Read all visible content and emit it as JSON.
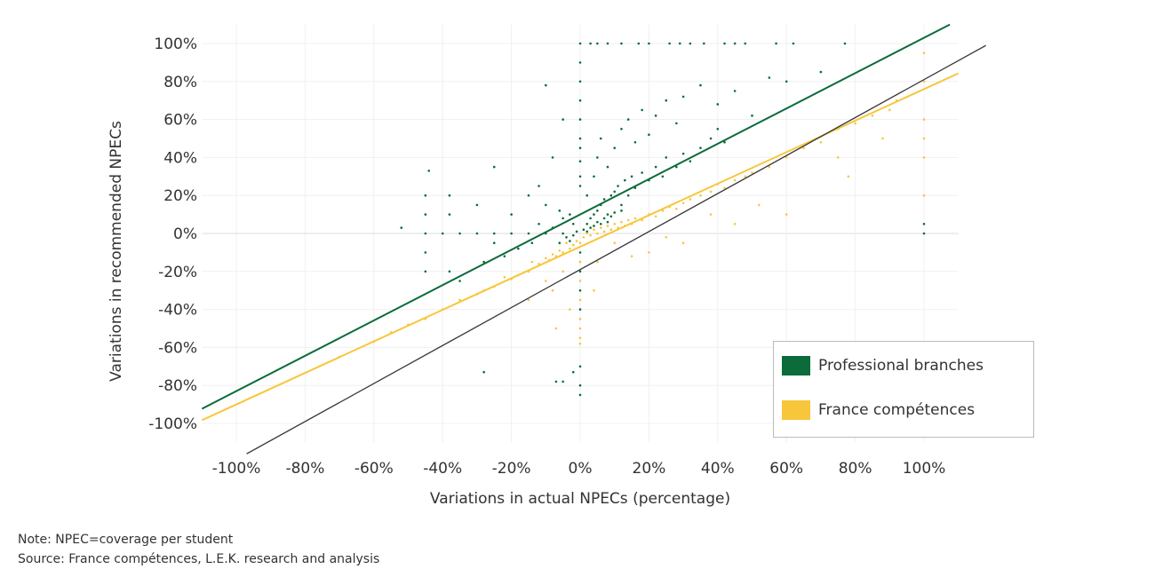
{
  "chart_data": {
    "type": "scatter",
    "xlabel": "Variations in actual NPECs (percentage)",
    "ylabel": "Variations in recommended NPECs",
    "xlim": [
      -110,
      110
    ],
    "ylim": [
      -110,
      110
    ],
    "x_ticks": [
      "-100%",
      "-80%",
      "-60%",
      "-40%",
      "-20%",
      "0%",
      "20%",
      "40%",
      "60%",
      "80%",
      "100%"
    ],
    "y_ticks": [
      "100%",
      "80%",
      "60%",
      "40%",
      "20%",
      "0%",
      "-20%",
      "-40%",
      "-60%",
      "-80%",
      "-100%"
    ],
    "grid": true,
    "legend_placement": "bottom-right",
    "series": [
      {
        "name": "Professional branches",
        "color": "#0b6b3a",
        "trendline": {
          "slope": 0.93,
          "intercept": 10
        },
        "points": [
          [
            0,
            100
          ],
          [
            3,
            100
          ],
          [
            5,
            100
          ],
          [
            8,
            100
          ],
          [
            12,
            100
          ],
          [
            17,
            100
          ],
          [
            20,
            100
          ],
          [
            26,
            100
          ],
          [
            29,
            100
          ],
          [
            32,
            100
          ],
          [
            36,
            100
          ],
          [
            42,
            100
          ],
          [
            45,
            100
          ],
          [
            48,
            100
          ],
          [
            57,
            100
          ],
          [
            62,
            100
          ],
          [
            77,
            100
          ],
          [
            0,
            90
          ],
          [
            0,
            80
          ],
          [
            0,
            70
          ],
          [
            0,
            60
          ],
          [
            0,
            50
          ],
          [
            0,
            45
          ],
          [
            0,
            38
          ],
          [
            0,
            30
          ],
          [
            0,
            25
          ],
          [
            0,
            -10
          ],
          [
            0,
            -20
          ],
          [
            0,
            -30
          ],
          [
            0,
            -40
          ],
          [
            0,
            -70
          ],
          [
            0,
            -80
          ],
          [
            0,
            -85
          ],
          [
            -45,
            0
          ],
          [
            -40,
            0
          ],
          [
            -35,
            0
          ],
          [
            -30,
            0
          ],
          [
            -25,
            0
          ],
          [
            -20,
            0
          ],
          [
            -15,
            0
          ],
          [
            -10,
            0
          ],
          [
            -5,
            0
          ],
          [
            -45,
            10
          ],
          [
            -45,
            -10
          ],
          [
            -45,
            20
          ],
          [
            -45,
            -20
          ],
          [
            -38,
            20
          ],
          [
            -38,
            -20
          ],
          [
            -38,
            10
          ],
          [
            -52,
            3
          ],
          [
            2,
            5
          ],
          [
            3,
            8
          ],
          [
            4,
            10
          ],
          [
            5,
            12
          ],
          [
            6,
            15
          ],
          [
            7,
            18
          ],
          [
            8,
            10
          ],
          [
            9,
            20
          ],
          [
            10,
            22
          ],
          [
            11,
            25
          ],
          [
            12,
            15
          ],
          [
            13,
            28
          ],
          [
            14,
            20
          ],
          [
            15,
            30
          ],
          [
            16,
            24
          ],
          [
            18,
            32
          ],
          [
            20,
            28
          ],
          [
            22,
            35
          ],
          [
            24,
            30
          ],
          [
            25,
            40
          ],
          [
            28,
            35
          ],
          [
            30,
            42
          ],
          [
            32,
            38
          ],
          [
            35,
            45
          ],
          [
            38,
            50
          ],
          [
            40,
            55
          ],
          [
            42,
            48
          ],
          [
            2,
            20
          ],
          [
            4,
            30
          ],
          [
            5,
            40
          ],
          [
            6,
            50
          ],
          [
            8,
            35
          ],
          [
            10,
            45
          ],
          [
            12,
            55
          ],
          [
            14,
            60
          ],
          [
            16,
            48
          ],
          [
            18,
            65
          ],
          [
            20,
            52
          ],
          [
            22,
            62
          ],
          [
            25,
            70
          ],
          [
            28,
            58
          ],
          [
            30,
            72
          ],
          [
            35,
            78
          ],
          [
            40,
            68
          ],
          [
            45,
            75
          ],
          [
            50,
            62
          ],
          [
            55,
            82
          ],
          [
            60,
            80
          ],
          [
            70,
            85
          ],
          [
            -2,
            5
          ],
          [
            -3,
            10
          ],
          [
            -4,
            -2
          ],
          [
            -5,
            8
          ],
          [
            -6,
            12
          ],
          [
            -8,
            3
          ],
          [
            -10,
            15
          ],
          [
            -12,
            5
          ],
          [
            -14,
            -5
          ],
          [
            -15,
            20
          ],
          [
            -18,
            -8
          ],
          [
            -20,
            10
          ],
          [
            -22,
            -12
          ],
          [
            -25,
            -5
          ],
          [
            -28,
            -15
          ],
          [
            -30,
            15
          ],
          [
            -35,
            -25
          ],
          [
            -8,
            40
          ],
          [
            -10,
            78
          ],
          [
            -12,
            25
          ],
          [
            -5,
            60
          ],
          [
            -25,
            35
          ],
          [
            -44,
            33
          ],
          [
            1,
            2
          ],
          [
            2,
            1
          ],
          [
            3,
            3
          ],
          [
            4,
            4
          ],
          [
            5,
            6
          ],
          [
            6,
            5
          ],
          [
            7,
            8
          ],
          [
            8,
            6
          ],
          [
            9,
            9
          ],
          [
            10,
            11
          ],
          [
            12,
            12
          ],
          [
            -1,
            1
          ],
          [
            -2,
            -1
          ],
          [
            -3,
            -4
          ],
          [
            -6,
            -5
          ],
          [
            -7,
            -78
          ],
          [
            -5,
            -78
          ],
          [
            -2,
            -73
          ],
          [
            100,
            5
          ],
          [
            100,
            0
          ],
          [
            -28,
            -73
          ]
        ]
      },
      {
        "name": "France compétences",
        "color": "#f8c63b",
        "trendline": {
          "slope": 0.83,
          "intercept": -7
        },
        "points": [
          [
            1,
            -2
          ],
          [
            2,
            0
          ],
          [
            3,
            -1
          ],
          [
            4,
            2
          ],
          [
            5,
            0
          ],
          [
            6,
            3
          ],
          [
            7,
            1
          ],
          [
            8,
            4
          ],
          [
            9,
            2
          ],
          [
            10,
            5
          ],
          [
            11,
            3
          ],
          [
            12,
            6
          ],
          [
            13,
            4
          ],
          [
            14,
            7
          ],
          [
            15,
            5
          ],
          [
            16,
            8
          ],
          [
            18,
            7
          ],
          [
            20,
            10
          ],
          [
            22,
            9
          ],
          [
            24,
            12
          ],
          [
            26,
            14
          ],
          [
            28,
            13
          ],
          [
            30,
            16
          ],
          [
            32,
            18
          ],
          [
            35,
            20
          ],
          [
            38,
            22
          ],
          [
            40,
            26
          ],
          [
            42,
            24
          ],
          [
            45,
            28
          ],
          [
            48,
            30
          ],
          [
            50,
            32
          ],
          [
            55,
            35
          ],
          [
            60,
            40
          ],
          [
            65,
            45
          ],
          [
            70,
            48
          ],
          [
            75,
            55
          ],
          [
            80,
            58
          ],
          [
            85,
            62
          ],
          [
            90,
            65
          ],
          [
            -1,
            -4
          ],
          [
            -2,
            -6
          ],
          [
            -3,
            -8
          ],
          [
            -4,
            -5
          ],
          [
            -5,
            -10
          ],
          [
            -6,
            -9
          ],
          [
            -7,
            -12
          ],
          [
            -8,
            -11
          ],
          [
            -9,
            -14
          ],
          [
            -10,
            -13
          ],
          [
            -12,
            -16
          ],
          [
            -14,
            -15
          ],
          [
            -15,
            -20
          ],
          [
            -18,
            -22
          ],
          [
            -20,
            -24
          ],
          [
            -22,
            -23
          ],
          [
            -25,
            -28
          ],
          [
            -28,
            -30
          ],
          [
            -30,
            -32
          ],
          [
            -35,
            -35
          ],
          [
            -40,
            -40
          ],
          [
            -45,
            -45
          ],
          [
            -50,
            -48
          ],
          [
            -55,
            -52
          ],
          [
            -60,
            -57
          ],
          [
            -70,
            -65
          ],
          [
            0,
            -5
          ],
          [
            0,
            -15
          ],
          [
            0,
            -25
          ],
          [
            0,
            -35
          ],
          [
            0,
            -45
          ],
          [
            0,
            -50
          ],
          [
            0,
            -55
          ],
          [
            0,
            -58
          ],
          [
            100,
            40
          ],
          [
            100,
            50
          ],
          [
            100,
            60
          ],
          [
            100,
            20
          ],
          [
            100,
            80
          ],
          [
            100,
            95
          ],
          [
            78,
            30
          ],
          [
            75,
            40
          ],
          [
            60,
            10
          ],
          [
            52,
            15
          ],
          [
            45,
            5
          ],
          [
            38,
            10
          ],
          [
            30,
            -5
          ],
          [
            25,
            -2
          ],
          [
            20,
            -10
          ],
          [
            15,
            -12
          ],
          [
            10,
            -5
          ],
          [
            5,
            -15
          ],
          [
            -5,
            -20
          ],
          [
            -10,
            -25
          ],
          [
            -3,
            -40
          ],
          [
            -8,
            -30
          ],
          [
            -15,
            -35
          ],
          [
            4,
            -30
          ],
          [
            -7,
            -50
          ],
          [
            88,
            50
          ],
          [
            92,
            70
          ]
        ]
      },
      {
        "name": "",
        "color": "#333333",
        "trendline": {
          "slope": 1.0,
          "intercept": -19
        },
        "points": []
      }
    ]
  },
  "legend": {
    "items": [
      {
        "label": "Professional branches",
        "color": "#0b6b3a"
      },
      {
        "label": "France compétences",
        "color": "#f8c63b"
      }
    ]
  },
  "footer": {
    "note": "Note: NPEC=coverage per student",
    "source": "Source: France compétences, L.E.K. research and analysis"
  }
}
